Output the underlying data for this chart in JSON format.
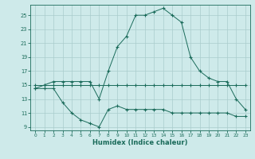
{
  "line1_x": [
    0,
    1,
    2,
    3,
    4,
    5,
    6,
    7,
    8,
    9,
    10,
    11,
    12,
    13,
    14,
    15,
    16,
    17,
    18,
    19,
    20,
    21,
    22,
    23
  ],
  "line1_y": [
    14.5,
    15.0,
    15.5,
    15.5,
    15.5,
    15.5,
    15.5,
    13.0,
    17.0,
    20.5,
    22.0,
    25.0,
    25.0,
    25.5,
    26.0,
    25.0,
    24.0,
    19.0,
    17.0,
    16.0,
    15.5,
    15.5,
    13.0,
    11.5
  ],
  "line2_x": [
    0,
    1,
    2,
    3,
    4,
    5,
    6,
    7,
    8,
    9,
    10,
    11,
    12,
    13,
    14,
    15,
    16,
    17,
    18,
    19,
    20,
    21,
    22,
    23
  ],
  "line2_y": [
    15.0,
    15.0,
    15.0,
    15.0,
    15.0,
    15.0,
    15.0,
    15.0,
    15.0,
    15.0,
    15.0,
    15.0,
    15.0,
    15.0,
    15.0,
    15.0,
    15.0,
    15.0,
    15.0,
    15.0,
    15.0,
    15.0,
    15.0,
    15.0
  ],
  "line3_x": [
    0,
    1,
    2,
    3,
    4,
    5,
    6,
    7,
    8,
    9,
    10,
    11,
    12,
    13,
    14,
    15,
    16,
    17,
    18,
    19,
    20,
    21,
    22,
    23
  ],
  "line3_y": [
    14.5,
    14.5,
    14.5,
    12.5,
    11.0,
    10.0,
    9.5,
    9.0,
    11.5,
    12.0,
    11.5,
    11.5,
    11.5,
    11.5,
    11.5,
    11.0,
    11.0,
    11.0,
    11.0,
    11.0,
    11.0,
    11.0,
    10.5,
    10.5
  ],
  "color": "#1a6b5a",
  "bg_color": "#ceeaea",
  "grid_color": "#aacccc",
  "xlabel": "Humidex (Indice chaleur)",
  "ylim": [
    8.5,
    26.5
  ],
  "xlim": [
    -0.5,
    23.5
  ],
  "yticks": [
    9,
    11,
    13,
    15,
    17,
    19,
    21,
    23,
    25
  ],
  "xticks": [
    0,
    1,
    2,
    3,
    4,
    5,
    6,
    7,
    8,
    9,
    10,
    11,
    12,
    13,
    14,
    15,
    16,
    17,
    18,
    19,
    20,
    21,
    22,
    23
  ]
}
